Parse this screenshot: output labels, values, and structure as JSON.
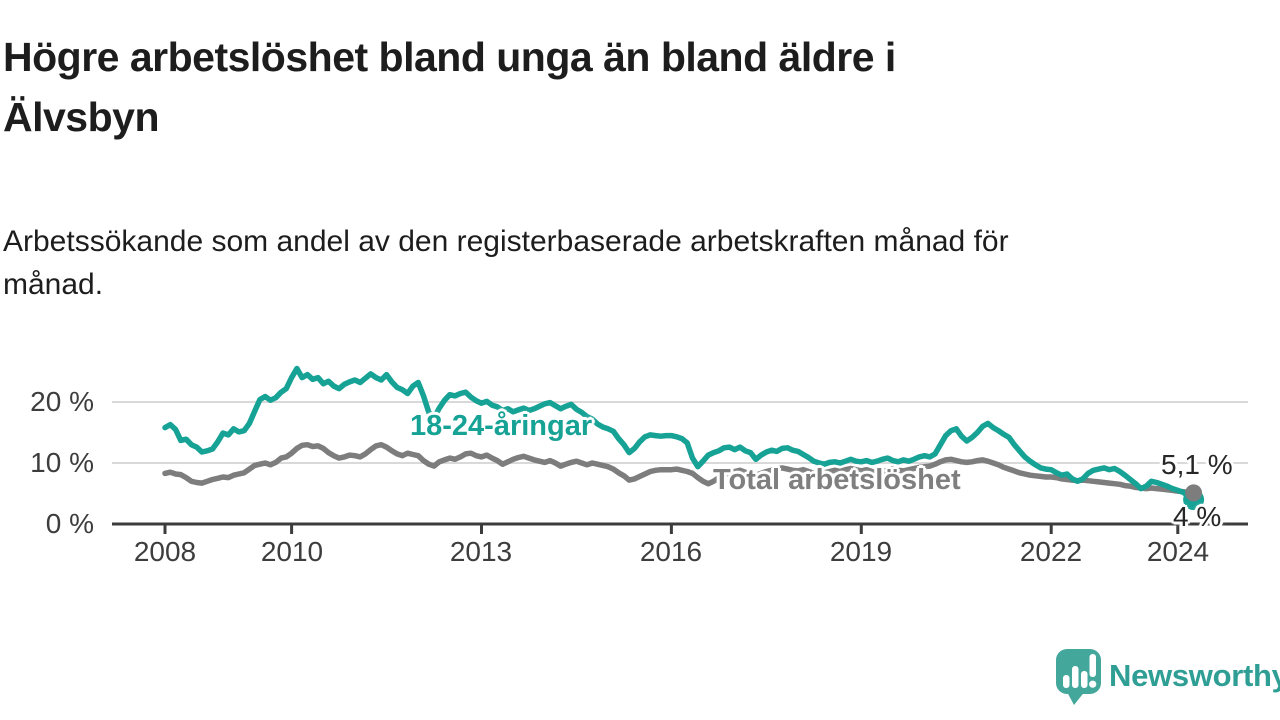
{
  "header": {
    "title_line1": "Högre arbetslöshet bland unga än bland äldre i",
    "title_line2": "Älvsbyn",
    "subtitle_line1": "Arbetssökande som andel av den registerbaserade arbetskraften månad för",
    "subtitle_line2": "månad."
  },
  "branding": {
    "name": "Newsworthy",
    "color": "#2f9e95",
    "icon": "newsworthy-speech-bubble-chart-icon"
  },
  "chart_data": {
    "type": "line",
    "title": "Högre arbetslöshet bland unga än bland äldre i Älvsbyn",
    "subtitle": "Arbetssökande som andel av den registerbaserade arbetskraften månad för månad.",
    "unit": "%",
    "frequency": "monthly",
    "x_start_year": 2008,
    "x_end_year": 2024.25,
    "ylim": [
      0,
      27
    ],
    "grid": "horizontal",
    "legend_position": "inline-labels",
    "yticks": [
      {
        "v": 0,
        "label": "0 %"
      },
      {
        "v": 10,
        "label": "10 %"
      },
      {
        "v": 20,
        "label": "20 %"
      }
    ],
    "xticks": [
      {
        "v": 2008,
        "label": "2008"
      },
      {
        "v": 2010,
        "label": "2010"
      },
      {
        "v": 2013,
        "label": "2013"
      },
      {
        "v": 2016,
        "label": "2016"
      },
      {
        "v": 2019,
        "label": "2019"
      },
      {
        "v": 2022,
        "label": "2022"
      },
      {
        "v": 2024,
        "label": "2024"
      }
    ],
    "series": [
      {
        "name": "Total arbetslöshet",
        "color": "#7d7d7d",
        "end_label": "5,1 %",
        "end_value": 5.1,
        "dot_radius": 8.5,
        "values": [
          8.3,
          8.5,
          8.2,
          8.1,
          7.6,
          7.0,
          6.8,
          6.7,
          7.0,
          7.3,
          7.5,
          7.7,
          7.6,
          8.0,
          8.2,
          8.4,
          9.0,
          9.6,
          9.8,
          10.0,
          9.7,
          10.1,
          10.8,
          11.0,
          11.6,
          12.4,
          12.9,
          13.0,
          12.7,
          12.8,
          12.4,
          11.7,
          11.2,
          10.8,
          11.0,
          11.3,
          11.2,
          11.0,
          11.5,
          12.2,
          12.8,
          13.0,
          12.6,
          12.0,
          11.5,
          11.2,
          11.6,
          11.4,
          11.2,
          10.4,
          9.8,
          9.5,
          10.2,
          10.5,
          10.8,
          10.6,
          11.0,
          11.5,
          11.6,
          11.2,
          11.0,
          11.3,
          10.8,
          10.4,
          9.8,
          10.2,
          10.6,
          10.9,
          11.1,
          10.8,
          10.5,
          10.3,
          10.1,
          10.4,
          10.0,
          9.5,
          9.8,
          10.1,
          10.3,
          10.0,
          9.7,
          10.0,
          9.8,
          9.6,
          9.4,
          9.0,
          8.4,
          7.9,
          7.2,
          7.4,
          7.8,
          8.2,
          8.6,
          8.8,
          8.9,
          8.9,
          8.9,
          9.0,
          8.8,
          8.6,
          8.3,
          7.6,
          7.0,
          6.6,
          7.0,
          7.6,
          8.1,
          8.4,
          8.6,
          8.8,
          8.5,
          8.2,
          8.0,
          8.3,
          8.6,
          8.8,
          9.0,
          9.2,
          9.0,
          8.8,
          8.7,
          8.9,
          8.6,
          8.3,
          8.1,
          8.4,
          8.6,
          8.8,
          8.6,
          8.9,
          9.1,
          8.9,
          8.7,
          8.9,
          8.6,
          8.4,
          8.6,
          8.8,
          9.0,
          8.8,
          8.7,
          8.9,
          9.1,
          9.3,
          9.4,
          9.5,
          9.8,
          10.2,
          10.5,
          10.6,
          10.4,
          10.2,
          10.1,
          10.2,
          10.4,
          10.5,
          10.3,
          10.0,
          9.7,
          9.3,
          9.0,
          8.7,
          8.4,
          8.2,
          8.0,
          7.9,
          7.8,
          7.7,
          7.7,
          7.6,
          7.4,
          7.3,
          7.2,
          7.1,
          7.2,
          7.1,
          7.0,
          6.9,
          6.8,
          6.7,
          6.6,
          6.5,
          6.3,
          6.2,
          6.0,
          5.9,
          5.8,
          5.9,
          5.8,
          5.7,
          5.6,
          5.5,
          5.4,
          5.3,
          5.2,
          5.1
        ]
      },
      {
        "name": "18-24-åringar",
        "color": "#17a296",
        "end_label": "4 %",
        "end_value": 4.0,
        "dot_radius": 10.5,
        "values": [
          15.8,
          16.3,
          15.5,
          13.7,
          13.9,
          13.0,
          12.6,
          11.8,
          12.0,
          12.3,
          13.5,
          14.9,
          14.6,
          15.6,
          15.1,
          15.3,
          16.5,
          18.5,
          20.4,
          20.9,
          20.3,
          20.7,
          21.6,
          22.2,
          24.0,
          25.5,
          24.0,
          24.5,
          23.7,
          24.0,
          23.0,
          23.4,
          22.6,
          22.2,
          22.9,
          23.3,
          23.6,
          23.2,
          23.9,
          24.6,
          24.0,
          23.6,
          24.5,
          23.3,
          22.4,
          22.0,
          21.4,
          22.6,
          23.2,
          21.0,
          18.3,
          17.4,
          19.0,
          20.3,
          21.2,
          21.0,
          21.4,
          21.6,
          20.8,
          20.2,
          19.8,
          20.1,
          19.5,
          19.2,
          18.6,
          18.9,
          18.4,
          18.7,
          19.0,
          18.6,
          18.9,
          19.3,
          19.7,
          19.9,
          19.4,
          18.9,
          19.3,
          19.6,
          18.8,
          18.3,
          17.6,
          17.2,
          16.4,
          15.9,
          15.6,
          15.2,
          14.0,
          13.0,
          11.7,
          12.4,
          13.5,
          14.3,
          14.6,
          14.5,
          14.4,
          14.5,
          14.5,
          14.3,
          14.0,
          13.3,
          10.8,
          9.4,
          10.3,
          11.3,
          11.7,
          12.0,
          12.5,
          12.6,
          12.2,
          12.6,
          12.0,
          11.7,
          10.6,
          11.3,
          11.8,
          12.1,
          11.9,
          12.4,
          12.5,
          12.1,
          11.9,
          11.4,
          10.9,
          10.3,
          10.0,
          9.8,
          10.1,
          10.2,
          10.0,
          10.3,
          10.6,
          10.3,
          10.2,
          10.4,
          10.1,
          10.3,
          10.6,
          10.8,
          10.4,
          10.2,
          10.5,
          10.3,
          10.6,
          11.0,
          11.2,
          11.0,
          11.5,
          13.0,
          14.5,
          15.3,
          15.6,
          14.4,
          13.6,
          14.2,
          15.0,
          16.0,
          16.5,
          15.8,
          15.3,
          14.7,
          14.2,
          13.0,
          12.0,
          11.0,
          10.3,
          9.7,
          9.2,
          9.0,
          8.9,
          8.4,
          8.0,
          8.2,
          7.4,
          7.0,
          7.4,
          8.3,
          8.8,
          9.0,
          9.2,
          8.9,
          9.1,
          8.6,
          8.0,
          7.3,
          6.6,
          5.8,
          6.2,
          7.0,
          6.8,
          6.5,
          6.2,
          5.8,
          5.5,
          5.2,
          4.6,
          4.0
        ]
      }
    ]
  }
}
